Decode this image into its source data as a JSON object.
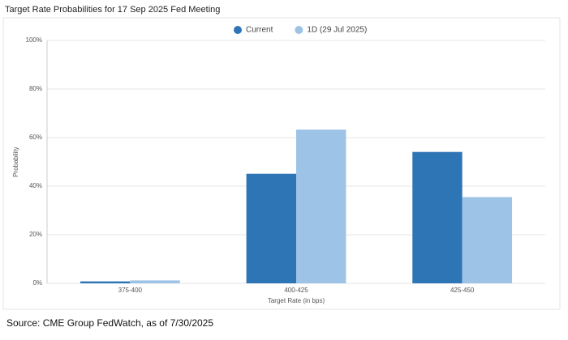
{
  "chart_data": {
    "type": "bar",
    "title": "Target Rate Probabilities for 17 Sep 2025 Fed Meeting",
    "categories": [
      "375-400",
      "400-425",
      "425-450"
    ],
    "series": [
      {
        "name": "Current",
        "color": "#2e75b6",
        "values": [
          0.8,
          45.1,
          54.1
        ]
      },
      {
        "name": "1D (29 Jul 2025)",
        "color": "#9dc3e6",
        "values": [
          1.2,
          63.3,
          35.5
        ]
      }
    ],
    "x_label": "Target Rate (in bps)",
    "y_label": "Probability",
    "ylim": [
      0,
      100
    ],
    "yticks": [
      {
        "value": 0,
        "label": "0%"
      },
      {
        "value": 20,
        "label": "20%"
      },
      {
        "value": 40,
        "label": "40%"
      },
      {
        "value": 60,
        "label": "60%"
      },
      {
        "value": 80,
        "label": "80%"
      },
      {
        "value": 100,
        "label": "100%"
      }
    ],
    "grid": true,
    "legend": "top"
  },
  "source": "Source: CME Group FedWatch, as of 7/30/2025"
}
